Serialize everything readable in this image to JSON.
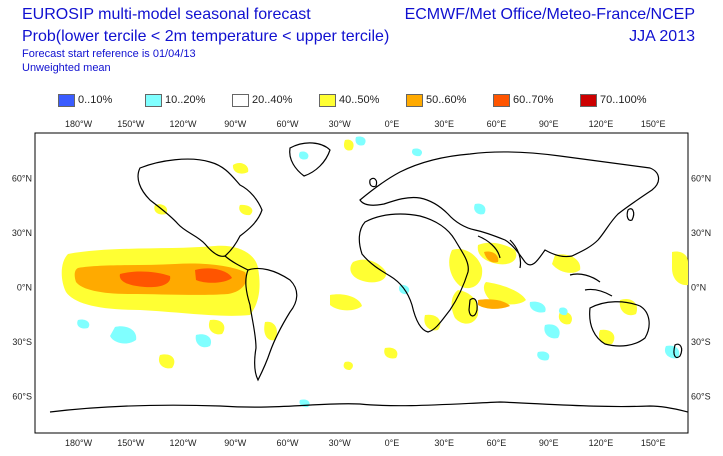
{
  "header": {
    "title_line1": "EUROSIP multi-model seasonal forecast",
    "title_line2": "Prob(lower tercile < 2m temperature < upper tercile)",
    "subtitle_line1": "Forecast start reference is 01/04/13",
    "subtitle_line2": "Unweighted mean",
    "centres": "ECMWF/Met Office/Meteo-France/NCEP",
    "season": "JJA 2013"
  },
  "legend": [
    {
      "label": "0..10%",
      "color": "#3a5cff"
    },
    {
      "label": "10..20%",
      "color": "#80ffff"
    },
    {
      "label": "20..40%",
      "color": "#ffffff"
    },
    {
      "label": "40..50%",
      "color": "#ffff33"
    },
    {
      "label": "50..60%",
      "color": "#ffaa00"
    },
    {
      "label": "60..70%",
      "color": "#ff5500"
    },
    {
      "label": "70..100%",
      "color": "#cc0000"
    }
  ],
  "axes": {
    "lon_ticks": [
      "180°W",
      "150°W",
      "120°W",
      "90°W",
      "60°W",
      "30°W",
      "0°E",
      "30°E",
      "60°E",
      "90°E",
      "120°E",
      "150°E"
    ],
    "lat_ticks": [
      "60°N",
      "30°N",
      "0°N",
      "30°S",
      "60°S"
    ]
  }
}
